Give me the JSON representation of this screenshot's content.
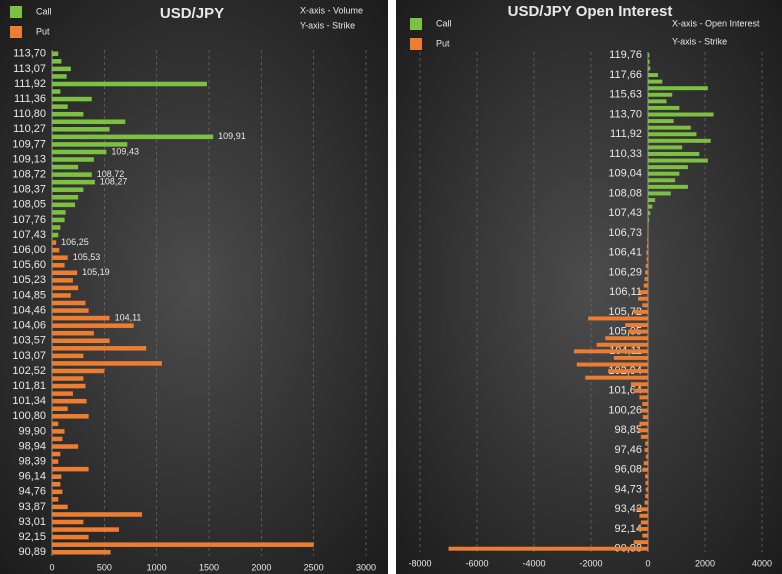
{
  "chart_data": [
    {
      "type": "hbar",
      "title": "USD/JPY",
      "notes": [
        "X-axis - Volume",
        "Y-axis - Strike"
      ],
      "categories": [
        "113,70",
        null,
        "113,07",
        null,
        "111,92",
        null,
        "111,36",
        null,
        "110,80",
        null,
        "110,27",
        null,
        "109,77",
        null,
        "109,13",
        null,
        "108,72",
        null,
        "108,37",
        null,
        "108,05",
        null,
        "107,76",
        null,
        "107,43",
        null,
        "106,00",
        null,
        "105,60",
        null,
        "105,23",
        null,
        "104,85",
        null,
        "104,46",
        null,
        "104,06",
        null,
        "103,57",
        null,
        "103,07",
        null,
        "102,52",
        null,
        "101,81",
        null,
        "101,34",
        null,
        "100,80",
        null,
        "99,90",
        null,
        "98,94",
        null,
        "98,39",
        null,
        "96,14",
        null,
        "94,76",
        null,
        "93,87",
        null,
        "93,01",
        null,
        "92,15",
        null,
        "90,89"
      ],
      "bar_labels": [
        null,
        null,
        null,
        null,
        null,
        null,
        null,
        null,
        null,
        null,
        null,
        "109,91",
        null,
        "109,43",
        null,
        null,
        "108,72",
        "108,27",
        null,
        null,
        null,
        null,
        null,
        null,
        null,
        "106,25",
        null,
        "105,53",
        null,
        "105,19",
        null,
        null,
        null,
        null,
        null,
        "104,11",
        null,
        null,
        null,
        null,
        null,
        null,
        null,
        null,
        null,
        null,
        null,
        null,
        null,
        null,
        null,
        null,
        null,
        null,
        null,
        null,
        null,
        null,
        null,
        null,
        null,
        null,
        null,
        null,
        null,
        null,
        null
      ],
      "series": [
        {
          "name": "Call",
          "color": "#7cc142",
          "values": [
            60,
            90,
            180,
            140,
            1480,
            80,
            380,
            150,
            300,
            700,
            550,
            1540,
            720,
            520,
            400,
            250,
            380,
            410,
            300,
            250,
            220,
            130,
            120,
            80,
            60,
            null,
            null,
            null,
            null,
            null,
            null,
            null,
            null,
            null,
            null,
            null,
            null,
            null,
            null,
            null,
            null,
            null,
            null,
            null,
            null,
            null,
            null,
            null,
            null,
            null,
            null,
            null,
            null,
            null,
            null,
            null,
            null,
            null,
            null,
            null,
            null,
            null,
            null,
            null,
            null,
            null,
            null
          ]
        },
        {
          "name": "Put",
          "color": "#ed7d31",
          "values": [
            null,
            null,
            null,
            null,
            null,
            null,
            null,
            null,
            null,
            null,
            null,
            null,
            null,
            null,
            null,
            null,
            null,
            null,
            null,
            null,
            null,
            null,
            null,
            null,
            null,
            40,
            70,
            150,
            120,
            240,
            200,
            250,
            180,
            320,
            350,
            550,
            780,
            400,
            550,
            900,
            300,
            1050,
            500,
            300,
            320,
            200,
            330,
            150,
            350,
            60,
            120,
            100,
            250,
            80,
            60,
            350,
            90,
            80,
            100,
            60,
            150,
            860,
            300,
            640,
            350,
            2500,
            560
          ]
        }
      ],
      "xlim": [
        0,
        3000
      ],
      "xticks": [
        0,
        500,
        1000,
        1500,
        2000,
        2500,
        3000
      ],
      "grid": true
    },
    {
      "type": "hbar",
      "title": "USD/JPY Open Interest",
      "notes": [
        "X-axis - Open Interest",
        "Y-axis - Strike"
      ],
      "categories": [
        "119,76",
        null,
        null,
        "117,66",
        null,
        null,
        "115,63",
        null,
        null,
        "113,70",
        null,
        null,
        "111,92",
        null,
        null,
        "110,33",
        null,
        null,
        "109,04",
        null,
        null,
        "108,08",
        null,
        null,
        "107,43",
        null,
        null,
        "106,73",
        null,
        null,
        "106,41",
        null,
        null,
        "106,29",
        null,
        null,
        "106,11",
        null,
        null,
        "105,72",
        null,
        null,
        "105,05",
        null,
        null,
        "104,11",
        null,
        null,
        "102,94",
        null,
        null,
        "101,64",
        null,
        null,
        "100,26",
        null,
        null,
        "98,85",
        null,
        null,
        "97,46",
        null,
        null,
        "96,08",
        null,
        null,
        "94,73",
        null,
        null,
        "93,42",
        null,
        null,
        "92,14",
        null,
        null,
        "90,88"
      ],
      "series": [
        {
          "name": "Call",
          "color": "#7cc142",
          "values": [
            50,
            60,
            80,
            350,
            500,
            2100,
            850,
            650,
            1100,
            2300,
            900,
            1500,
            1700,
            2200,
            1200,
            1800,
            2100,
            1400,
            1100,
            950,
            1400,
            800,
            250,
            150,
            80,
            40,
            20,
            null,
            null,
            null,
            null,
            null,
            null,
            null,
            null,
            null,
            null,
            null,
            null,
            null,
            null,
            null,
            null,
            null,
            null,
            null,
            null,
            null,
            null,
            null,
            null,
            null,
            null,
            null,
            null,
            null,
            null,
            null,
            null,
            null,
            null,
            null,
            null,
            null,
            null,
            null,
            null,
            null,
            null,
            null,
            null,
            null,
            null,
            null,
            null,
            null
          ]
        },
        {
          "name": "Put",
          "color": "#ed7d31",
          "values": [
            null,
            null,
            null,
            null,
            null,
            null,
            null,
            null,
            null,
            null,
            null,
            null,
            null,
            null,
            null,
            null,
            null,
            null,
            null,
            null,
            null,
            null,
            null,
            null,
            null,
            null,
            null,
            -20,
            -30,
            -40,
            -60,
            -50,
            -80,
            -100,
            -120,
            -150,
            -300,
            -350,
            -200,
            -500,
            -2100,
            -800,
            -700,
            -1500,
            -1800,
            -2600,
            -1200,
            -2500,
            -1400,
            -2200,
            -600,
            -500,
            -300,
            -200,
            -250,
            -180,
            -300,
            -350,
            -250,
            -100,
            -120,
            -80,
            -150,
            -200,
            -100,
            -90,
            -80,
            -100,
            -120,
            -400,
            -300,
            -250,
            -350,
            -200,
            -500,
            -7000
          ]
        }
      ],
      "xlim": [
        -8000,
        4000
      ],
      "xticks": [
        -8000,
        -6000,
        -4000,
        -2000,
        0,
        2000,
        4000
      ],
      "grid": true
    }
  ]
}
